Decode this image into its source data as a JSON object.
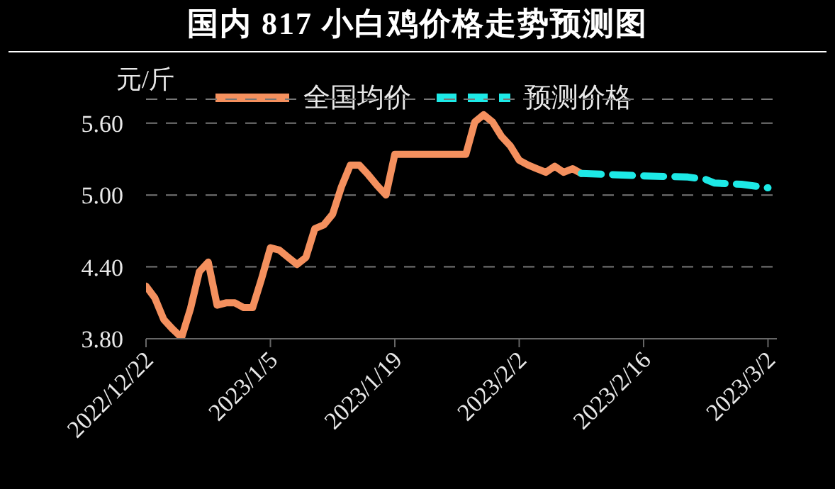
{
  "chart_data": {
    "type": "line",
    "title": "国内 817 小白鸡价格走势预测图",
    "ylabel": "元/斤",
    "xlim": [
      "2022-12-22",
      "2023-03-03"
    ],
    "xticks": [
      {
        "value": "2022-12-22",
        "label": "2022/12/22"
      },
      {
        "value": "2023-01-05",
        "label": "2023/1/5"
      },
      {
        "value": "2023-01-19",
        "label": "2023/1/19"
      },
      {
        "value": "2023-02-02",
        "label": "2023/2/2"
      },
      {
        "value": "2023-02-16",
        "label": "2023/2/16"
      },
      {
        "value": "2023-03-02",
        "label": "2023/3/2"
      }
    ],
    "ylim": [
      3.8,
      5.8
    ],
    "yticks": [
      {
        "value": 3.8,
        "label": "3.80"
      },
      {
        "value": 4.4,
        "label": "4.40"
      },
      {
        "value": 5.0,
        "label": "5.00"
      },
      {
        "value": 5.6,
        "label": "5.60"
      }
    ],
    "grid": "y",
    "legend": "top",
    "marker": "none",
    "series": [
      {
        "name": "全国均价",
        "color": "#f4905e",
        "line_style": "solid",
        "x": [
          "2022-12-22",
          "2022-12-23",
          "2022-12-24",
          "2022-12-25",
          "2022-12-26",
          "2022-12-27",
          "2022-12-28",
          "2022-12-29",
          "2022-12-30",
          "2022-12-31",
          "2023-01-01",
          "2023-01-02",
          "2023-01-03",
          "2023-01-04",
          "2023-01-05",
          "2023-01-06",
          "2023-01-07",
          "2023-01-08",
          "2023-01-09",
          "2023-01-10",
          "2023-01-11",
          "2023-01-12",
          "2023-01-13",
          "2023-01-14",
          "2023-01-15",
          "2023-01-16",
          "2023-01-17",
          "2023-01-18",
          "2023-01-19",
          "2023-01-20",
          "2023-01-21",
          "2023-01-22",
          "2023-01-23",
          "2023-01-24",
          "2023-01-25",
          "2023-01-26",
          "2023-01-27",
          "2023-01-28",
          "2023-01-29",
          "2023-01-30",
          "2023-01-31",
          "2023-02-01",
          "2023-02-02",
          "2023-02-03",
          "2023-02-04",
          "2023-02-05",
          "2023-02-06",
          "2023-02-07",
          "2023-02-08",
          "2023-02-09"
        ],
        "values": [
          4.24,
          4.14,
          3.96,
          3.88,
          3.81,
          4.05,
          4.36,
          4.44,
          4.08,
          4.1,
          4.1,
          4.06,
          4.06,
          4.3,
          4.56,
          4.54,
          4.48,
          4.42,
          4.48,
          4.72,
          4.75,
          4.84,
          5.07,
          5.25,
          5.25,
          5.17,
          5.08,
          5.0,
          5.34,
          5.34,
          5.34,
          5.34,
          5.34,
          5.34,
          5.34,
          5.34,
          5.34,
          5.61,
          5.67,
          5.61,
          5.49,
          5.41,
          5.29,
          5.25,
          5.22,
          5.19,
          5.24,
          5.19,
          5.22,
          5.18
        ]
      },
      {
        "name": "预测价格",
        "color": "#1de9e6",
        "line_style": "dashed",
        "x": [
          "2023-02-09",
          "2023-02-16",
          "2023-02-21",
          "2023-02-23",
          "2023-02-24",
          "2023-02-27",
          "2023-03-01",
          "2023-03-02"
        ],
        "values": [
          5.18,
          5.16,
          5.15,
          5.13,
          5.1,
          5.09,
          5.07,
          5.06
        ]
      }
    ]
  }
}
